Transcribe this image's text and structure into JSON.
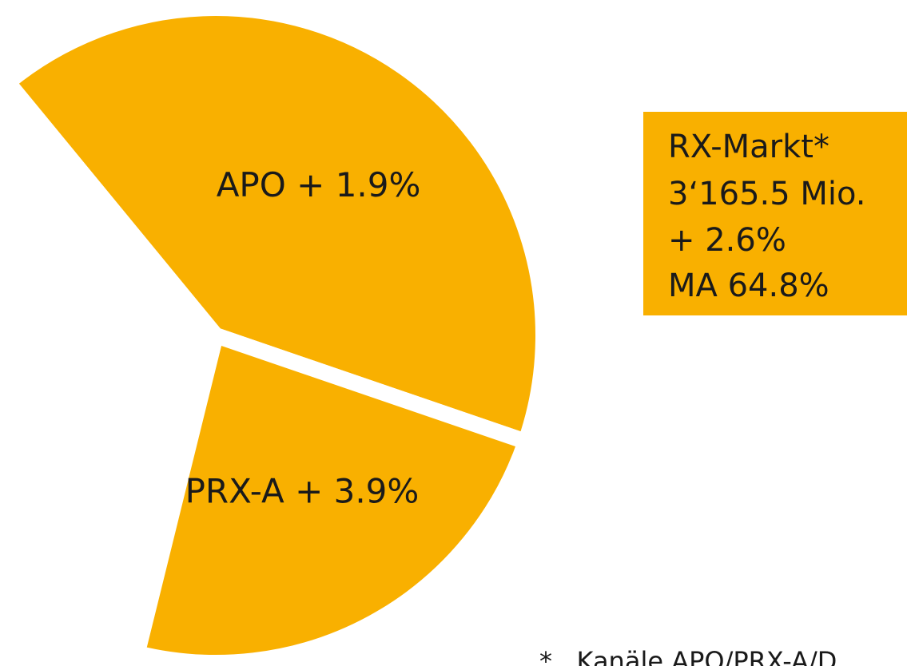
{
  "chart_data": {
    "type": "pie",
    "categories": [
      "APO + 1.9%",
      "PRX-A + 3.9%"
    ],
    "values": [
      41.2,
      23.6
    ],
    "color": "#f9b000",
    "info_box": [
      "RX-Markt*",
      "3‘165.5 Mio.",
      "+ 2.6%",
      "MA 64.8%"
    ],
    "footnote": "*   Kanäle APO/PRX-A/D"
  }
}
